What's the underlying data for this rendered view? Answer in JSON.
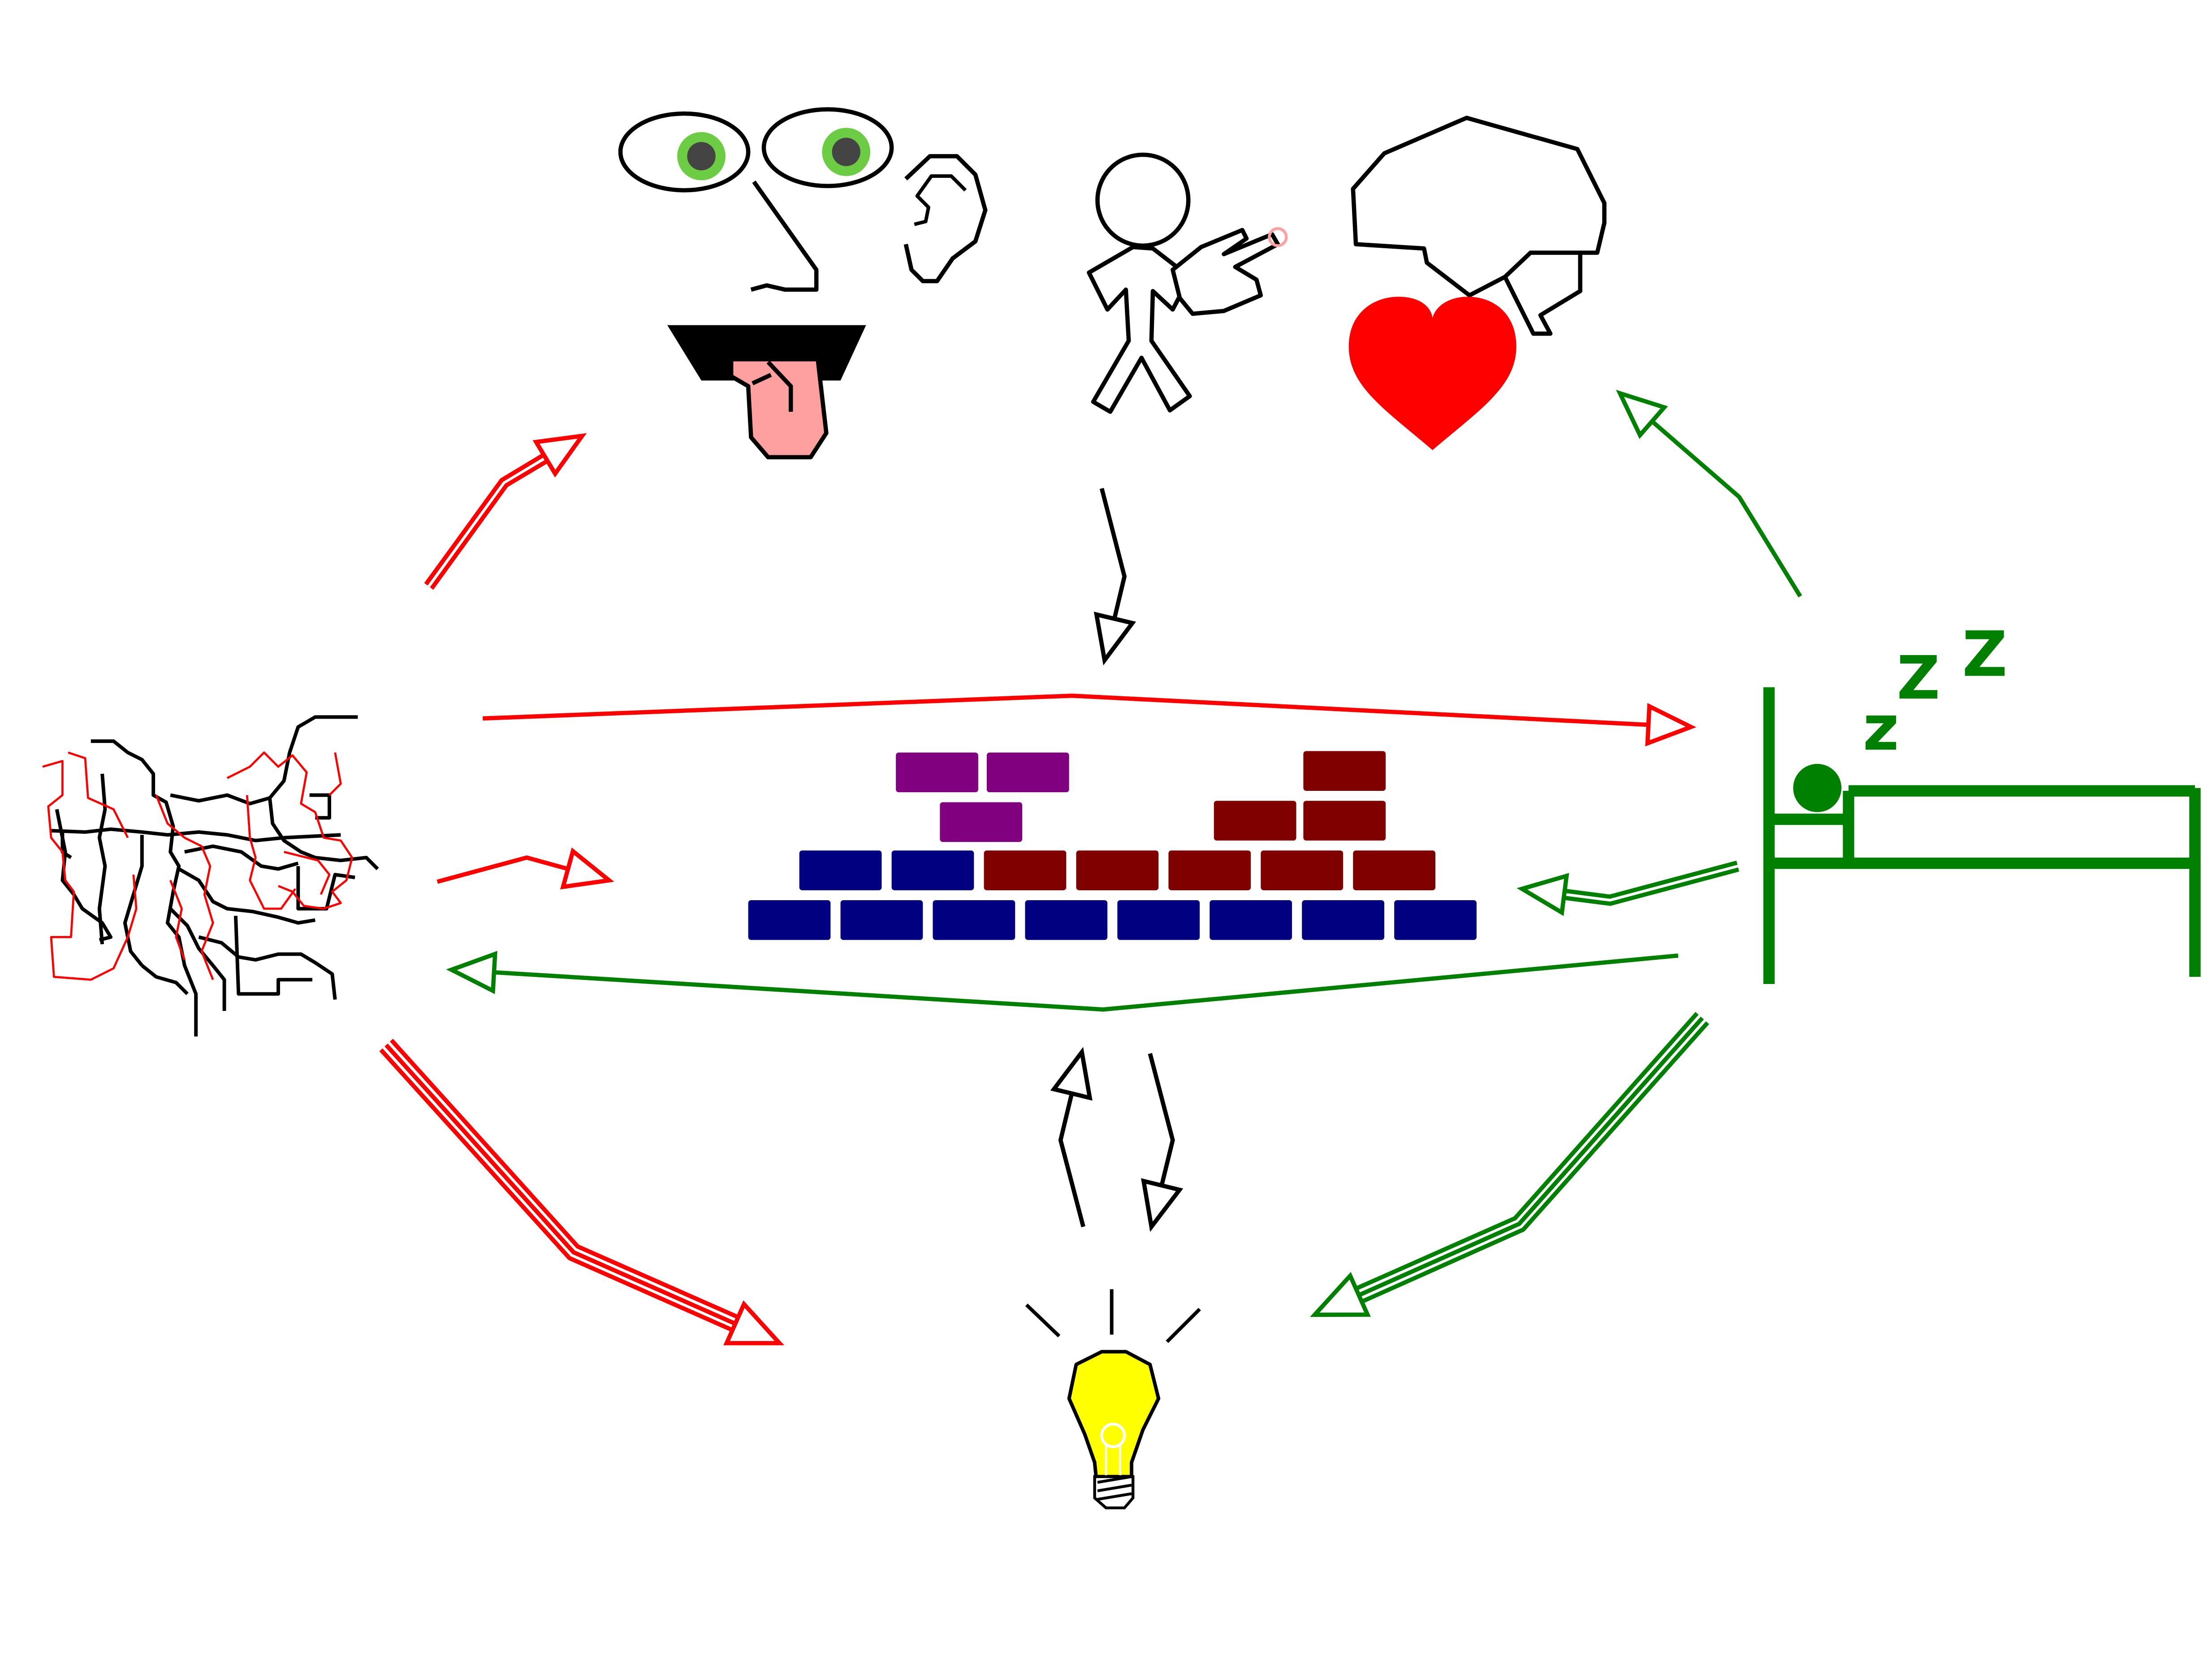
{
  "diagram": {
    "type": "concept-cycle",
    "nodes": [
      {
        "id": "senses",
        "icon": "face-icon"
      },
      {
        "id": "touch",
        "icon": "stick-figure-pointing-icon"
      },
      {
        "id": "emotion",
        "icon": "brain-heart-icon"
      },
      {
        "id": "knowledge",
        "icon": "brick-wall-icon"
      },
      {
        "id": "network",
        "icon": "neural-network-icon"
      },
      {
        "id": "sleep",
        "icon": "sleeping-in-bed-icon"
      },
      {
        "id": "insight",
        "icon": "lightbulb-icon"
      }
    ],
    "edges": [
      {
        "from": "network",
        "to": "senses",
        "color": "red",
        "style": "double"
      },
      {
        "from": "touch",
        "to": "knowledge",
        "color": "black",
        "style": "single"
      },
      {
        "from": "network",
        "to": "sleep",
        "color": "red",
        "style": "single"
      },
      {
        "from": "network",
        "to": "knowledge",
        "color": "red",
        "style": "single"
      },
      {
        "from": "sleep",
        "to": "knowledge",
        "color": "green",
        "style": "double"
      },
      {
        "from": "sleep",
        "to": "network",
        "color": "green",
        "style": "single"
      },
      {
        "from": "sleep",
        "to": "emotion",
        "color": "green",
        "style": "single"
      },
      {
        "from": "network",
        "to": "insight",
        "color": "red",
        "style": "triple"
      },
      {
        "from": "sleep",
        "to": "insight",
        "color": "green",
        "style": "triple"
      },
      {
        "from": "insight",
        "to": "knowledge",
        "color": "black",
        "style": "single"
      },
      {
        "from": "knowledge",
        "to": "insight",
        "color": "black",
        "style": "single"
      }
    ],
    "bricks": {
      "colors": {
        "purple": "#800080",
        "maroon": "#800000",
        "navy": "#000080"
      }
    },
    "sleep_text": [
      "z",
      "Z",
      "Z"
    ],
    "colors": {
      "red": "#ff0000",
      "green": "#008000",
      "black": "#000000",
      "heart": "#ff0000",
      "tongue": "#ffa0a0",
      "iris": "#6ccd45",
      "pupil": "#444444",
      "bulb": "#ffff00"
    }
  }
}
